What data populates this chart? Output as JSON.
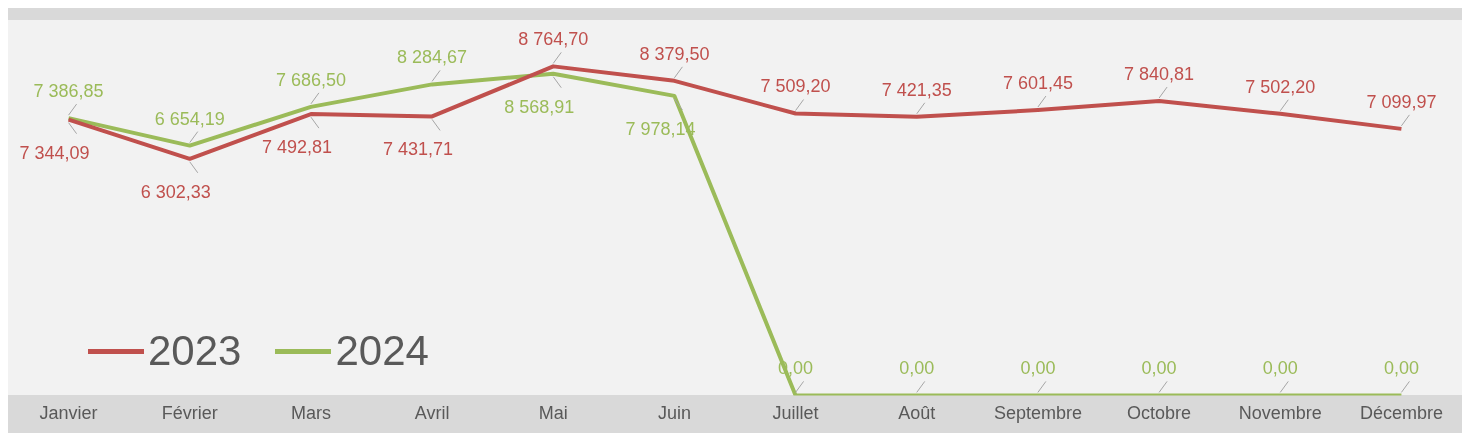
{
  "chart_data": {
    "type": "line",
    "categories": [
      "Janvier",
      "Février",
      "Mars",
      "Avril",
      "Mai",
      "Juin",
      "Juillet",
      "Août",
      "Septembre",
      "Octobre",
      "Novembre",
      "Décembre"
    ],
    "series": [
      {
        "name": "2023",
        "color": "#c0504d",
        "values": [
          7344.09,
          6302.33,
          7492.81,
          7431.71,
          8764.7,
          8379.5,
          7509.2,
          7421.35,
          7601.45,
          7840.81,
          7502.2,
          7099.97
        ],
        "value_labels": [
          "7 344,09",
          "6 302,33",
          "7 492,81",
          "7 431,71",
          "8 764,70",
          "8 379,50",
          "7 509,20",
          "7 421,35",
          "7 601,45",
          "7 840,81",
          "7 502,20",
          "7 099,97"
        ]
      },
      {
        "name": "2024",
        "color": "#9bbb59",
        "values": [
          7386.85,
          6654.19,
          7686.5,
          8284.67,
          8568.91,
          7978.14,
          0,
          0,
          0,
          0,
          0,
          0
        ],
        "value_labels": [
          "7 386,85",
          "6 654,19",
          "7 686,50",
          "8 284,67",
          "8 568,91",
          "7 978,14",
          "0,00",
          "0,00",
          "0,00",
          "0,00",
          "0,00",
          "0,00"
        ]
      }
    ],
    "ylim": [
      0,
      10000
    ],
    "tick_labels": "x",
    "grid": false,
    "legend": "bottom left",
    "marker": "none",
    "line_style": "solid"
  }
}
